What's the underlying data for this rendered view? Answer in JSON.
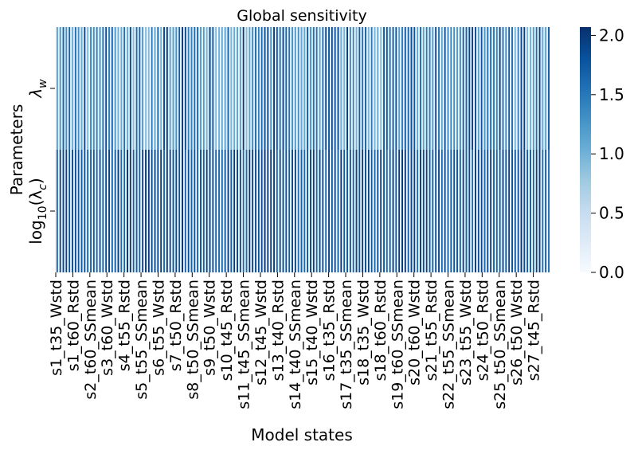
{
  "chart_data": {
    "type": "heatmap",
    "title": "Global sensitivity",
    "xlabel": "Model states",
    "ylabel": "Parameters",
    "rows": [
      {
        "label_main": "λ",
        "label_sub": "w"
      },
      {
        "label_main": "log",
        "label_sub": "10",
        "label_tail": "(λ",
        "label_sub2": "c",
        "label_end": ")"
      }
    ],
    "x_tick_labels": [
      "s1_t35_Wstd",
      "s1_t60_Rstd",
      "s2_t60_SSmean",
      "s3_t60_Wstd",
      "s4_t55_Rstd",
      "s5_t55_SSmean",
      "s6_t55_Wstd",
      "s7_t50_Rstd",
      "s8_t50_SSmean",
      "s9_t50_Wstd",
      "s10_t45_Rstd",
      "s11_t45_SSmean",
      "s12_t45_Wstd",
      "s13_t40_Rstd",
      "s14_t40_SSmean",
      "s15_t40_Wstd",
      "s16_t35_Rstd",
      "s17_t35_SSmean",
      "s18_t35_Wstd",
      "s18_t60_Rstd",
      "s19_t60_SSmean",
      "s20_t60_Wstd",
      "s21_t55_Rstd",
      "s22_t55_SSmean",
      "s23_t55_Wstd",
      "s24_t50_Rstd",
      "s25_t50_SSmean",
      "s26_t50_Wstd",
      "s27_t45_Rstd"
    ],
    "n_columns": 324,
    "colorbar": {
      "min": 0.0,
      "max": 2.07,
      "ticks": [
        "0.0",
        "0.5",
        "1.0",
        "1.5",
        "2.0"
      ],
      "colormap": "Blues"
    },
    "colors": {
      "low": "#f7fbff",
      "high": "#08306b"
    }
  }
}
